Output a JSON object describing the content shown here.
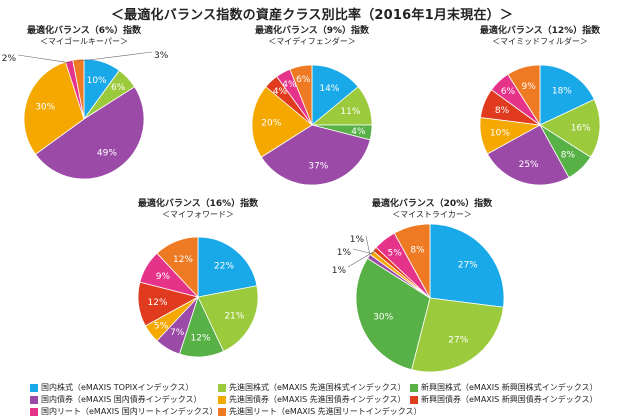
{
  "title": "＜最適化バランス指数の資産クラス別比率（2016年1月末現在）＞",
  "colors": {
    "domestic_stock": "#1aa9e8",
    "developed_stock": "#9bcb3c",
    "emerging_stock": "#58b147",
    "domestic_bond": "#9b4aa8",
    "developed_bond": "#f5a800",
    "emerging_bond": "#e03a1f",
    "domestic_reit": "#e6338a",
    "developed_reit": "#ee7a23"
  },
  "legend": [
    {
      "key": "domestic_stock",
      "label": "国内株式（eMAXIS TOPIXインデックス）"
    },
    {
      "key": "developed_stock",
      "label": "先進国株式（eMAXIS 先進国株式インデックス）"
    },
    {
      "key": "emerging_stock",
      "label": "新興国株式（eMAXIS 新興国株式インデックス）"
    },
    {
      "key": "domestic_bond",
      "label": "国内債券（eMAXIS 国内債券インデックス）"
    },
    {
      "key": "developed_bond",
      "label": "先進国債券（eMAXIS 先進国債券インデックス）"
    },
    {
      "key": "emerging_bond",
      "label": "新興国債券（eMAXIS 新興国債券インデックス）"
    },
    {
      "key": "domestic_reit",
      "label": "国内リート（eMAXIS 国内リートインデックス）"
    },
    {
      "key": "developed_reit",
      "label": "先進国リート（eMAXIS 先進国リートインデックス）"
    }
  ],
  "chart_data": [
    {
      "type": "pie",
      "title": "最適化バランス（6%）指数",
      "subtitle": "＜マイゴールキーパー＞",
      "slices": [
        {
          "key": "domestic_stock",
          "value": 10,
          "label": "10%"
        },
        {
          "key": "developed_stock",
          "value": 6,
          "label": "6%"
        },
        {
          "key": "domestic_bond",
          "value": 49,
          "label": "49%"
        },
        {
          "key": "developed_bond",
          "value": 30,
          "label": "30%"
        },
        {
          "key": "domestic_reit",
          "value": 2,
          "label": "2%"
        },
        {
          "key": "developed_reit",
          "value": 3,
          "label": "3%"
        }
      ]
    },
    {
      "type": "pie",
      "title": "最適化バランス（9%）指数",
      "subtitle": "＜マイディフェンダー＞",
      "slices": [
        {
          "key": "domestic_stock",
          "value": 14,
          "label": "14%"
        },
        {
          "key": "developed_stock",
          "value": 11,
          "label": "11%"
        },
        {
          "key": "emerging_stock",
          "value": 4,
          "label": "4%"
        },
        {
          "key": "domestic_bond",
          "value": 37,
          "label": "37%"
        },
        {
          "key": "developed_bond",
          "value": 20,
          "label": "20%"
        },
        {
          "key": "emerging_bond",
          "value": 4,
          "label": "4%"
        },
        {
          "key": "domestic_reit",
          "value": 4,
          "label": "4%"
        },
        {
          "key": "developed_reit",
          "value": 6,
          "label": "6%"
        }
      ]
    },
    {
      "type": "pie",
      "title": "最適化バランス（12%）指数",
      "subtitle": "＜マイミッドフィルダー＞",
      "slices": [
        {
          "key": "domestic_stock",
          "value": 18,
          "label": "18%"
        },
        {
          "key": "developed_stock",
          "value": 16,
          "label": "16%"
        },
        {
          "key": "emerging_stock",
          "value": 8,
          "label": "8%"
        },
        {
          "key": "domestic_bond",
          "value": 25,
          "label": "25%"
        },
        {
          "key": "developed_bond",
          "value": 10,
          "label": "10%"
        },
        {
          "key": "emerging_bond",
          "value": 8,
          "label": "8%"
        },
        {
          "key": "domestic_reit",
          "value": 6,
          "label": "6%"
        },
        {
          "key": "developed_reit",
          "value": 9,
          "label": "9%"
        }
      ]
    },
    {
      "type": "pie",
      "title": "最適化バランス（16%）指数",
      "subtitle": "＜マイフォワード＞",
      "slices": [
        {
          "key": "domestic_stock",
          "value": 22,
          "label": "22%"
        },
        {
          "key": "developed_stock",
          "value": 21,
          "label": "21%"
        },
        {
          "key": "emerging_stock",
          "value": 12,
          "label": "12%"
        },
        {
          "key": "domestic_bond",
          "value": 7,
          "label": "7%"
        },
        {
          "key": "developed_bond",
          "value": 5,
          "label": "5%"
        },
        {
          "key": "emerging_bond",
          "value": 12,
          "label": "12%"
        },
        {
          "key": "domestic_reit",
          "value": 9,
          "label": "9%"
        },
        {
          "key": "developed_reit",
          "value": 12,
          "label": "12%"
        }
      ]
    },
    {
      "type": "pie",
      "title": "最適化バランス（20%）指数",
      "subtitle": "＜マイストライカー＞",
      "slices": [
        {
          "key": "domestic_stock",
          "value": 27,
          "label": "27%"
        },
        {
          "key": "developed_stock",
          "value": 27,
          "label": "27%"
        },
        {
          "key": "emerging_stock",
          "value": 30,
          "label": "30%"
        },
        {
          "key": "domestic_bond",
          "value": 1,
          "label": "1%"
        },
        {
          "key": "developed_bond",
          "value": 1,
          "label": "1%"
        },
        {
          "key": "emerging_bond",
          "value": 1,
          "label": "1%"
        },
        {
          "key": "domestic_reit",
          "value": 5,
          "label": "5%"
        },
        {
          "key": "developed_reit",
          "value": 8,
          "label": "8%"
        }
      ]
    }
  ]
}
